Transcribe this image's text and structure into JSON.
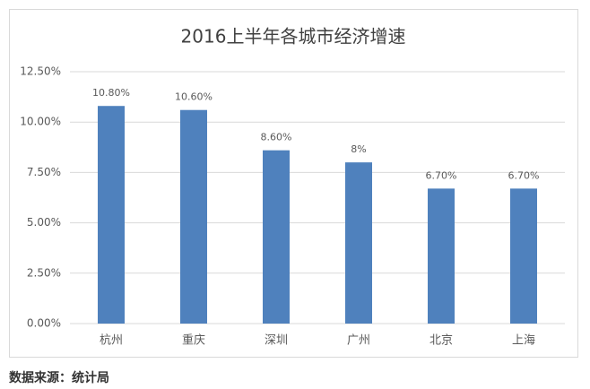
{
  "chart_data": {
    "type": "bar",
    "title": "2016上半年各城市经济增速",
    "categories": [
      "杭州",
      "重庆",
      "深圳",
      "广州",
      "北京",
      "上海"
    ],
    "values": [
      10.8,
      10.6,
      8.6,
      8,
      6.7,
      6.7
    ],
    "value_labels": [
      "10.80%",
      "10.60%",
      "8.60%",
      "8%",
      "6.70%",
      "6.70%"
    ],
    "color": "#4f81bd",
    "ylim": [
      0,
      12.5
    ],
    "yticks": [
      {
        "value": 0,
        "label": "0.00%"
      },
      {
        "value": 2.5,
        "label": "2.50%"
      },
      {
        "value": 5,
        "label": "5.00%"
      },
      {
        "value": 7.5,
        "label": "7.50%"
      },
      {
        "value": 10,
        "label": "10.00%"
      },
      {
        "value": 12.5,
        "label": "12.50%"
      }
    ],
    "grid": true
  },
  "source": "数据来源：统计局"
}
